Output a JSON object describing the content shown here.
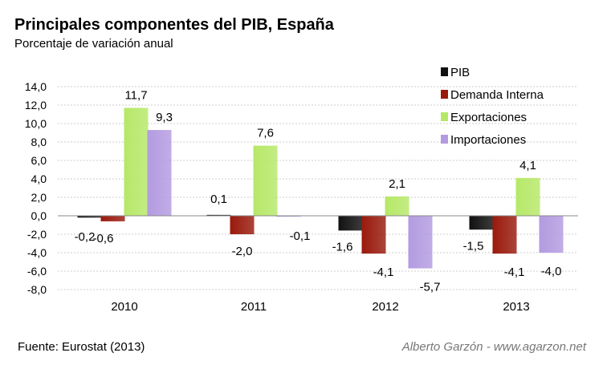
{
  "header": {
    "title": "Principales componentes del PIB, España",
    "subtitle": "Porcentaje de variación anual"
  },
  "footer": {
    "source": "Fuente: Eurostat (2013)",
    "credit": "Alberto Garzón - www.agarzon.net"
  },
  "chart_data": {
    "type": "bar",
    "categories": [
      "2010",
      "2011",
      "2012",
      "2013"
    ],
    "series": [
      {
        "name": "PIB",
        "values": [
          -0.2,
          0.1,
          -1.6,
          -1.5
        ],
        "color": "#111111"
      },
      {
        "name": "Demanda Interna",
        "values": [
          -0.6,
          -2.0,
          -4.1,
          -4.1
        ],
        "color": "#991a0c"
      },
      {
        "name": "Exportaciones",
        "values": [
          11.7,
          null,
          2.1,
          4.1
        ],
        "color": "#b6e868"
      },
      {
        "name": "Importaciones",
        "values": [
          9.3,
          -0.1,
          -5.7,
          -4.0
        ],
        "color": "#b39be0"
      }
    ],
    "value_labels": [
      [
        "-0,2",
        "0,1",
        "-1,6",
        "-1,5"
      ],
      [
        "-0,6",
        "-2,0",
        "-4,1",
        "-4,1"
      ],
      [
        "11,7",
        "7,6",
        "2,1",
        "4,1"
      ],
      [
        "9,3",
        "-0,1",
        "-5,7",
        "-4,0"
      ]
    ],
    "exportaciones_2011": 7.6,
    "ylim": [
      -8,
      14
    ],
    "yticks": [
      14,
      12,
      10,
      8,
      6,
      4,
      2,
      0,
      -2,
      -4,
      -6,
      -8
    ],
    "ytick_labels": [
      "14,0",
      "12,0",
      "10,0",
      "8,0",
      "6,0",
      "4,0",
      "2,0",
      "0,0",
      "-2,0",
      "-4,0",
      "-6,0",
      "-8,0"
    ],
    "grid": true,
    "legend_position": "top-right"
  }
}
